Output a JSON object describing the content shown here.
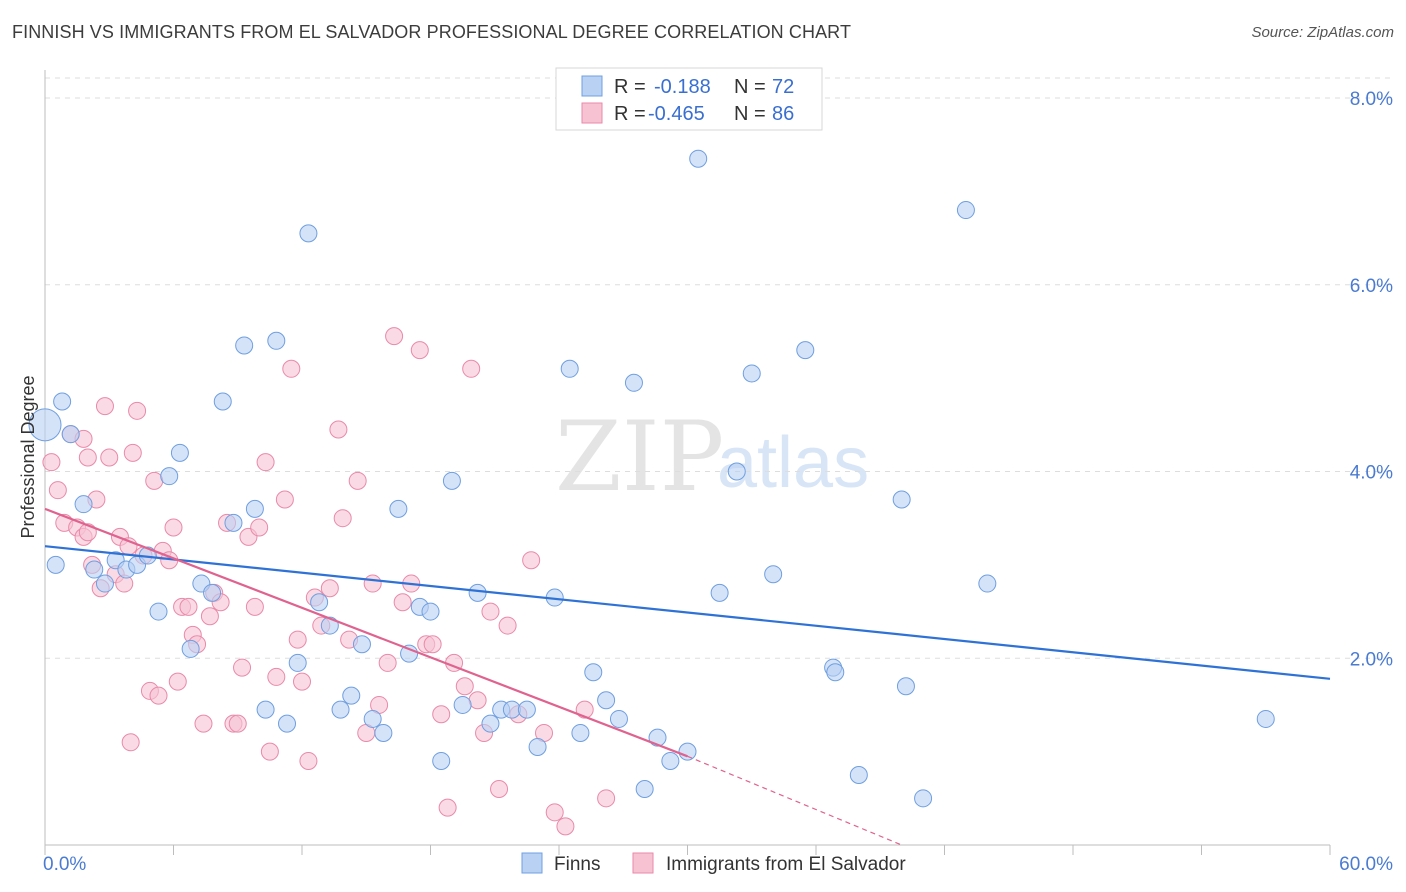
{
  "header": {
    "title": "FINNISH VS IMMIGRANTS FROM EL SALVADOR PROFESSIONAL DEGREE CORRELATION CHART",
    "source": "Source: ZipAtlas.com"
  },
  "colors": {
    "blue_fill": "#b9d1f3",
    "blue_stroke": "#6f9fe0",
    "blue_line": "#2f72d6",
    "pink_fill": "#f7c3d3",
    "pink_stroke": "#e98aa9",
    "pink_line": "#e0628f",
    "tick_text": "#4a7bd1"
  },
  "chart_data": {
    "type": "scatter",
    "title": "FINNISH VS IMMIGRANTS FROM EL SALVADOR PROFESSIONAL DEGREE CORRELATION CHART",
    "xlabel": "",
    "ylabel": "Professional Degree",
    "xlim": [
      0,
      60
    ],
    "ylim": [
      0,
      8.3
    ],
    "x_tick_labels": [
      "0.0%",
      "60.0%"
    ],
    "y_tick_labels": [
      "2.0%",
      "4.0%",
      "6.0%",
      "8.0%"
    ],
    "y_ticks": [
      2,
      4,
      6,
      8
    ],
    "grid": true,
    "legend_position": "top-center",
    "legend": [
      {
        "r_label": "R =",
        "r_value": "-0.188",
        "n_label": "N =",
        "n_value": "72"
      },
      {
        "r_label": "R =",
        "r_value": "-0.465",
        "n_label": "N =",
        "n_value": "86"
      }
    ],
    "series": [
      {
        "name": "Finns",
        "trend": {
          "x": [
            0,
            60
          ],
          "y": [
            3.2,
            1.78
          ]
        },
        "points": [
          [
            0.0,
            4.5
          ],
          [
            0.8,
            4.75
          ],
          [
            1.2,
            4.4
          ],
          [
            1.8,
            3.65
          ],
          [
            2.3,
            2.95
          ],
          [
            2.8,
            2.8
          ],
          [
            3.3,
            3.05
          ],
          [
            3.8,
            2.95
          ],
          [
            4.3,
            3.0
          ],
          [
            4.8,
            3.1
          ],
          [
            5.3,
            2.5
          ],
          [
            5.8,
            3.95
          ],
          [
            6.3,
            4.2
          ],
          [
            6.8,
            2.1
          ],
          [
            7.3,
            2.8
          ],
          [
            7.8,
            2.7
          ],
          [
            8.3,
            4.75
          ],
          [
            8.8,
            3.45
          ],
          [
            9.3,
            5.35
          ],
          [
            9.8,
            3.6
          ],
          [
            10.3,
            1.45
          ],
          [
            10.8,
            5.4
          ],
          [
            11.3,
            1.3
          ],
          [
            11.8,
            1.95
          ],
          [
            12.3,
            6.55
          ],
          [
            12.8,
            2.6
          ],
          [
            13.3,
            2.35
          ],
          [
            13.8,
            1.45
          ],
          [
            14.3,
            1.6
          ],
          [
            14.8,
            2.15
          ],
          [
            15.3,
            1.35
          ],
          [
            15.8,
            1.2
          ],
          [
            16.5,
            3.6
          ],
          [
            17.0,
            2.05
          ],
          [
            17.5,
            2.55
          ],
          [
            18.0,
            2.5
          ],
          [
            18.5,
            0.9
          ],
          [
            19.0,
            3.9
          ],
          [
            19.5,
            1.5
          ],
          [
            20.2,
            2.7
          ],
          [
            20.8,
            1.3
          ],
          [
            21.3,
            1.45
          ],
          [
            21.8,
            1.45
          ],
          [
            22.5,
            1.45
          ],
          [
            23.0,
            1.05
          ],
          [
            23.8,
            2.65
          ],
          [
            24.5,
            5.1
          ],
          [
            25.0,
            1.2
          ],
          [
            25.6,
            1.85
          ],
          [
            26.2,
            1.55
          ],
          [
            26.8,
            1.35
          ],
          [
            27.5,
            4.95
          ],
          [
            28.0,
            0.6
          ],
          [
            28.6,
            1.15
          ],
          [
            29.2,
            0.9
          ],
          [
            30.0,
            1.0
          ],
          [
            30.5,
            7.35
          ],
          [
            31.5,
            2.7
          ],
          [
            32.3,
            4.0
          ],
          [
            33.0,
            5.05
          ],
          [
            34.0,
            2.9
          ],
          [
            35.5,
            5.3
          ],
          [
            36.8,
            1.9
          ],
          [
            36.9,
            1.85
          ],
          [
            38.0,
            0.75
          ],
          [
            40.0,
            3.7
          ],
          [
            40.2,
            1.7
          ],
          [
            41.0,
            0.5
          ],
          [
            43.0,
            6.8
          ],
          [
            44.0,
            2.8
          ],
          [
            57.0,
            1.35
          ],
          [
            0.5,
            3.0
          ]
        ]
      },
      {
        "name": "Immigrants from El Salvador",
        "trend": {
          "x": [
            0,
            30
          ],
          "y": [
            3.6,
            0.95
          ]
        },
        "trend_dashed": {
          "x": [
            30,
            40
          ],
          "y": [
            0.95,
            0.0
          ]
        },
        "points": [
          [
            0.3,
            4.1
          ],
          [
            0.6,
            3.8
          ],
          [
            0.9,
            3.45
          ],
          [
            1.2,
            4.4
          ],
          [
            1.5,
            3.4
          ],
          [
            1.8,
            3.3
          ],
          [
            2.0,
            4.15
          ],
          [
            2.2,
            3.0
          ],
          [
            2.4,
            3.7
          ],
          [
            2.6,
            2.75
          ],
          [
            2.8,
            4.7
          ],
          [
            3.0,
            4.15
          ],
          [
            3.3,
            2.9
          ],
          [
            3.5,
            3.3
          ],
          [
            3.7,
            2.8
          ],
          [
            3.9,
            3.2
          ],
          [
            4.1,
            4.2
          ],
          [
            4.3,
            4.65
          ],
          [
            4.6,
            3.1
          ],
          [
            4.9,
            1.65
          ],
          [
            5.1,
            3.9
          ],
          [
            5.3,
            1.6
          ],
          [
            5.5,
            3.15
          ],
          [
            5.8,
            3.05
          ],
          [
            6.0,
            3.4
          ],
          [
            6.2,
            1.75
          ],
          [
            6.4,
            2.55
          ],
          [
            6.7,
            2.55
          ],
          [
            6.9,
            2.25
          ],
          [
            7.1,
            2.15
          ],
          [
            7.4,
            1.3
          ],
          [
            7.7,
            2.45
          ],
          [
            7.9,
            2.7
          ],
          [
            8.2,
            2.6
          ],
          [
            8.5,
            3.45
          ],
          [
            8.8,
            1.3
          ],
          [
            9.0,
            1.3
          ],
          [
            9.2,
            1.9
          ],
          [
            9.5,
            3.3
          ],
          [
            9.8,
            2.55
          ],
          [
            10.0,
            3.4
          ],
          [
            10.3,
            4.1
          ],
          [
            10.5,
            1.0
          ],
          [
            10.8,
            1.8
          ],
          [
            11.2,
            3.7
          ],
          [
            11.5,
            5.1
          ],
          [
            11.8,
            2.2
          ],
          [
            12.0,
            1.75
          ],
          [
            12.3,
            0.9
          ],
          [
            12.6,
            2.65
          ],
          [
            12.9,
            2.35
          ],
          [
            13.3,
            2.75
          ],
          [
            13.7,
            4.45
          ],
          [
            13.9,
            3.5
          ],
          [
            14.2,
            2.2
          ],
          [
            14.6,
            3.9
          ],
          [
            15.0,
            1.2
          ],
          [
            15.3,
            2.8
          ],
          [
            15.6,
            1.5
          ],
          [
            16.0,
            1.95
          ],
          [
            16.3,
            5.45
          ],
          [
            16.7,
            2.6
          ],
          [
            17.1,
            2.8
          ],
          [
            17.5,
            5.3
          ],
          [
            17.8,
            2.15
          ],
          [
            18.1,
            2.15
          ],
          [
            18.5,
            1.4
          ],
          [
            18.8,
            0.4
          ],
          [
            19.1,
            1.95
          ],
          [
            19.6,
            1.7
          ],
          [
            19.9,
            5.1
          ],
          [
            20.2,
            1.55
          ],
          [
            20.5,
            1.2
          ],
          [
            20.8,
            2.5
          ],
          [
            21.2,
            0.6
          ],
          [
            21.6,
            2.35
          ],
          [
            22.1,
            1.4
          ],
          [
            22.7,
            3.05
          ],
          [
            23.3,
            1.2
          ],
          [
            23.8,
            0.35
          ],
          [
            24.3,
            0.2
          ],
          [
            25.2,
            1.45
          ],
          [
            26.2,
            0.5
          ],
          [
            1.8,
            4.35
          ],
          [
            2.0,
            3.35
          ],
          [
            4.0,
            1.1
          ]
        ]
      }
    ]
  },
  "bottom_legend": [
    "Finns",
    "Immigrants from El Salvador"
  ],
  "watermark": {
    "part1": "ZIP",
    "part2": "atlas"
  }
}
